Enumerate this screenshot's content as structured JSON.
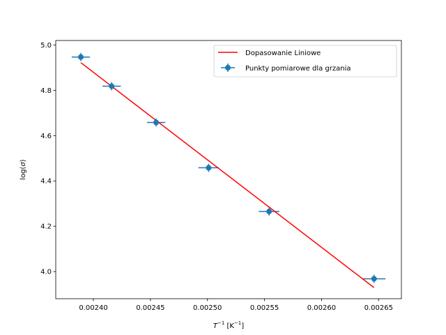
{
  "chart_data": {
    "type": "scatter",
    "xlabel_main": "T",
    "xlabel_sup": "−1",
    "xlabel_unit_open": " [K",
    "xlabel_unit_sup": "−1",
    "xlabel_unit_close": "]",
    "ylabel_prefix": "log(",
    "ylabel_symbol": "σ",
    "ylabel_suffix": ")",
    "xlim": [
      0.002367,
      0.00267
    ],
    "ylim": [
      3.88,
      5.02
    ],
    "xticks": [
      0.0024,
      0.00245,
      0.0025,
      0.00255,
      0.0026,
      0.00265
    ],
    "xtick_labels": [
      "0.00240",
      "0.00245",
      "0.00250",
      "0.00255",
      "0.00260",
      "0.00265"
    ],
    "yticks": [
      4.0,
      4.2,
      4.4,
      4.6,
      4.8,
      5.0
    ],
    "ytick_labels": [
      "4.0",
      "4.2",
      "4.4",
      "4.6",
      "4.8",
      "5.0"
    ],
    "legend_position": "top-right",
    "series": [
      {
        "name": "Punkty pomiarowe dla grzania",
        "kind": "errorbar",
        "color": "#1f77b4",
        "x": [
          0.002389,
          0.002416,
          0.002455,
          0.002501,
          0.002554,
          0.002646
        ],
        "y": [
          4.947,
          4.818,
          4.658,
          4.458,
          4.265,
          3.968
        ],
        "xerr": [
          8e-06,
          8e-06,
          8e-06,
          9e-06,
          9e-06,
          1e-05
        ],
        "yerr": [
          0.018,
          0.018,
          0.018,
          0.018,
          0.018,
          0.018
        ]
      },
      {
        "name": "Dopasowanie Liniowe",
        "kind": "line",
        "color": "#ff0000",
        "x": [
          0.002389,
          0.002646
        ],
        "y": [
          4.922,
          3.929
        ]
      }
    ]
  }
}
